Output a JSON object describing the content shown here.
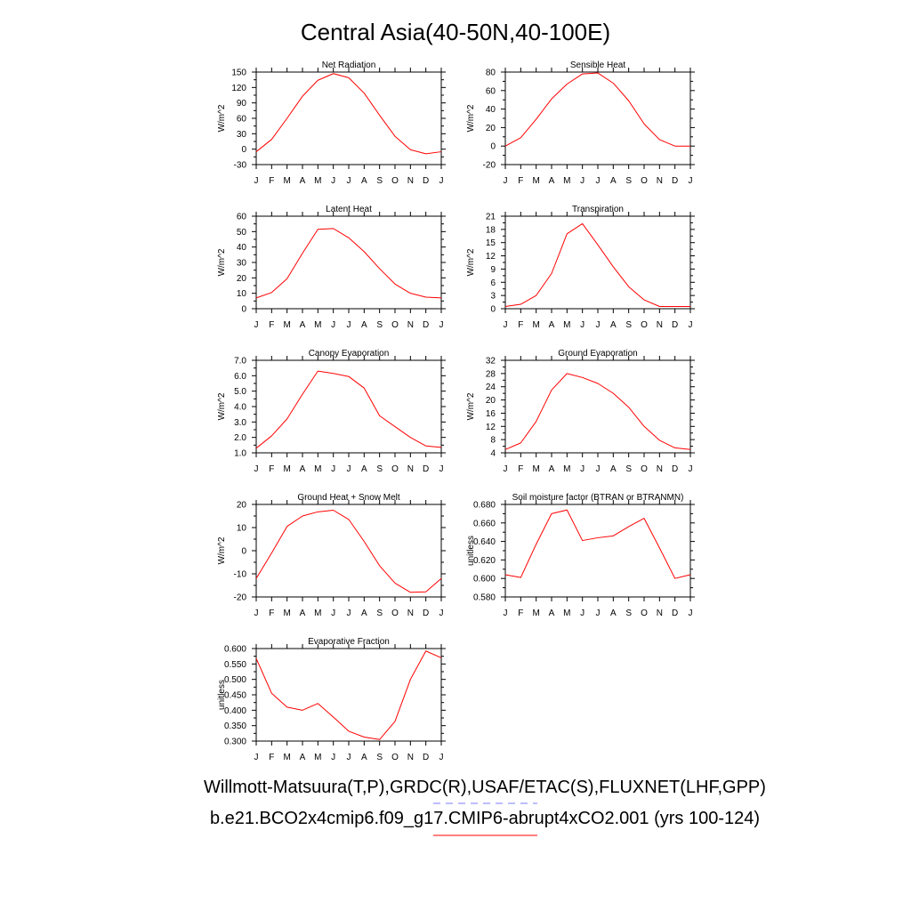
{
  "figure": {
    "title": "Central Asia(40-50N,40-100E)",
    "footer_line1": "Willmott-Matsuura(T,P),GRDC(R),USAF/ETAC(S),FLUXNET(LHF,GPP)",
    "footer_line2": "b.e21.BCO2x4cmip6.f09_g17.CMIP6-abrupt4xCO2.001 (yrs 100-124)",
    "line_color": "#ff0000",
    "legend_dash_color": "#7b7bff",
    "legend_solid_color": "#ff0000"
  },
  "chart_data": [
    {
      "type": "line",
      "title": "Net Radiation",
      "ylabel": "W/m^2",
      "categories": [
        "J",
        "F",
        "M",
        "A",
        "M",
        "J",
        "J",
        "A",
        "S",
        "O",
        "N",
        "D",
        "J"
      ],
      "ylim": [
        -30,
        150
      ],
      "yticks": [
        "-30",
        "0",
        "30",
        "60",
        "90",
        "120",
        "150"
      ],
      "series": [
        {
          "values": [
            -5,
            19,
            60,
            103,
            134,
            147,
            139,
            109,
            66,
            25,
            -1,
            -9,
            -5
          ]
        }
      ]
    },
    {
      "type": "line",
      "title": "Sensible Heat",
      "ylabel": "W/m^2",
      "categories": [
        "J",
        "F",
        "M",
        "A",
        "M",
        "J",
        "J",
        "A",
        "S",
        "O",
        "N",
        "D",
        "J"
      ],
      "ylim": [
        -20,
        80
      ],
      "yticks": [
        "-20",
        "0",
        "20",
        "40",
        "60",
        "80"
      ],
      "series": [
        {
          "values": [
            0,
            9,
            29,
            51,
            67,
            78,
            79,
            68,
            49,
            24,
            7,
            0,
            0
          ]
        }
      ]
    },
    {
      "type": "line",
      "title": "Latent Heat",
      "ylabel": "W/m^2",
      "categories": [
        "J",
        "F",
        "M",
        "A",
        "M",
        "J",
        "J",
        "A",
        "S",
        "O",
        "N",
        "D",
        "J"
      ],
      "ylim": [
        0,
        60
      ],
      "yticks": [
        "0",
        "10",
        "20",
        "30",
        "40",
        "50",
        "60"
      ],
      "series": [
        {
          "values": [
            7,
            10.5,
            19.5,
            36,
            51.5,
            52,
            46,
            37,
            26,
            16,
            10,
            7.5,
            7
          ]
        }
      ]
    },
    {
      "type": "line",
      "title": "Transpiration",
      "ylabel": "W/m^2",
      "categories": [
        "J",
        "F",
        "M",
        "A",
        "M",
        "J",
        "J",
        "A",
        "S",
        "O",
        "N",
        "D",
        "J"
      ],
      "ylim": [
        0,
        21
      ],
      "yticks": [
        "0",
        "3",
        "6",
        "9",
        "12",
        "15",
        "18",
        "21"
      ],
      "series": [
        {
          "values": [
            0.5,
            1,
            3,
            8,
            17,
            19.3,
            14.5,
            9.5,
            5,
            2,
            0.5,
            0.5,
            0.5
          ]
        }
      ]
    },
    {
      "type": "line",
      "title": "Canopy Evaporation",
      "ylabel": "W/m^2",
      "categories": [
        "J",
        "F",
        "M",
        "A",
        "M",
        "J",
        "J",
        "A",
        "S",
        "O",
        "N",
        "D",
        "J"
      ],
      "ylim": [
        1.0,
        7.0
      ],
      "yticks": [
        "1.0",
        "2.0",
        "3.0",
        "4.0",
        "5.0",
        "6.0",
        "7.0"
      ],
      "series": [
        {
          "values": [
            1.3,
            2.1,
            3.2,
            4.8,
            6.3,
            6.15,
            5.95,
            5.2,
            3.4,
            2.7,
            2.0,
            1.45,
            1.35
          ]
        }
      ]
    },
    {
      "type": "line",
      "title": "Ground Evaporation",
      "ylabel": "W/m^2",
      "categories": [
        "J",
        "F",
        "M",
        "A",
        "M",
        "J",
        "J",
        "A",
        "S",
        "O",
        "N",
        "D",
        "J"
      ],
      "ylim": [
        4,
        32
      ],
      "yticks": [
        "4",
        "8",
        "12",
        "16",
        "20",
        "24",
        "28",
        "32"
      ],
      "series": [
        {
          "values": [
            5,
            7,
            13.5,
            23,
            28,
            26.8,
            25,
            22,
            17.8,
            12,
            7.8,
            5.5,
            5
          ]
        }
      ]
    },
    {
      "type": "line",
      "title": "Ground Heat + Snow Melt",
      "ylabel": "W/m^2",
      "categories": [
        "J",
        "F",
        "M",
        "A",
        "M",
        "J",
        "J",
        "A",
        "S",
        "O",
        "N",
        "D",
        "J"
      ],
      "ylim": [
        -20,
        20
      ],
      "yticks": [
        "-20",
        "-10",
        "0",
        "10",
        "20"
      ],
      "series": [
        {
          "values": [
            -12,
            -1,
            10.5,
            15,
            16.8,
            17.5,
            13.5,
            4,
            -6.5,
            -14,
            -18,
            -17.8,
            -12
          ]
        }
      ]
    },
    {
      "type": "line",
      "title": "Soil moisture factor (BTRAN or BTRANMN)",
      "ylabel": "unitless",
      "categories": [
        "J",
        "F",
        "M",
        "A",
        "M",
        "J",
        "J",
        "A",
        "S",
        "O",
        "N",
        "D",
        "J"
      ],
      "ylim": [
        0.58,
        0.68
      ],
      "yticks": [
        "0.580",
        "0.600",
        "0.620",
        "0.640",
        "0.660",
        "0.680"
      ],
      "series": [
        {
          "values": [
            0.604,
            0.601,
            0.637,
            0.67,
            0.674,
            0.641,
            0.644,
            0.646,
            0.656,
            0.665,
            0.633,
            0.6,
            0.604
          ]
        }
      ]
    },
    {
      "type": "line",
      "title": "Evaporative Fraction",
      "ylabel": "unitless",
      "categories": [
        "J",
        "F",
        "M",
        "A",
        "M",
        "J",
        "J",
        "A",
        "S",
        "O",
        "N",
        "D",
        "J"
      ],
      "ylim": [
        0.3,
        0.6
      ],
      "yticks": [
        "0.300",
        "0.350",
        "0.400",
        "0.450",
        "0.500",
        "0.550",
        "0.600"
      ],
      "series": [
        {
          "values": [
            0.568,
            0.455,
            0.41,
            0.4,
            0.422,
            0.378,
            0.332,
            0.313,
            0.305,
            0.364,
            0.5,
            0.592,
            0.57
          ]
        }
      ]
    }
  ]
}
